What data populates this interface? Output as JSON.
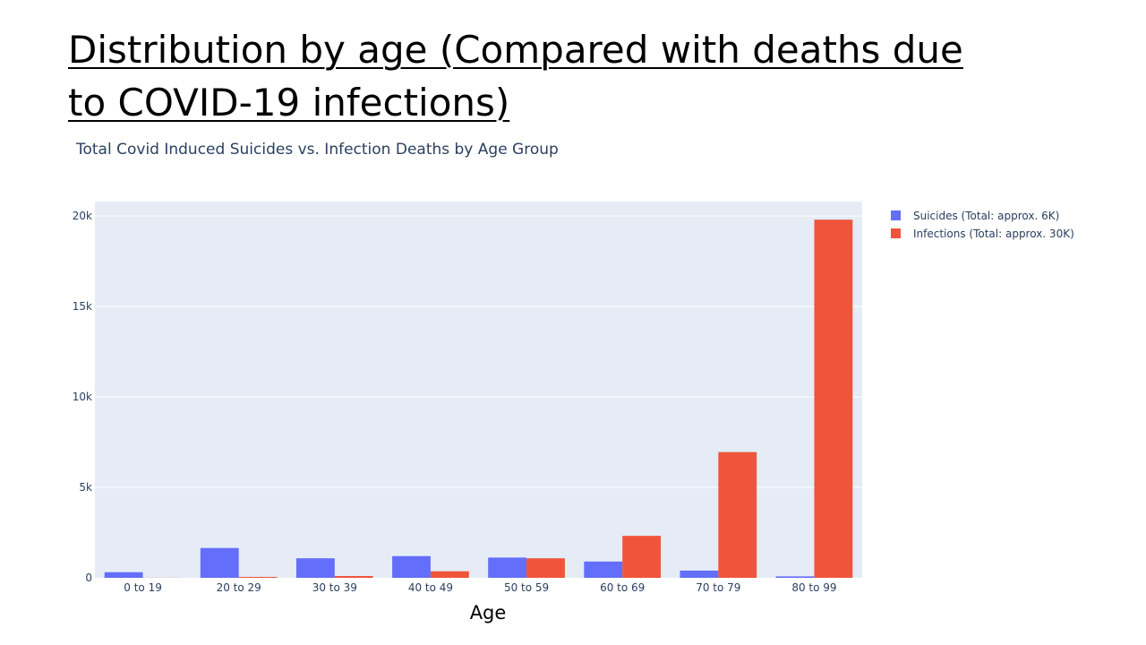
{
  "slide": {
    "title": "Distribution by age (Compared with deaths due to COVID-19 infections)"
  },
  "colors": {
    "plot_background": "#e5ecf6",
    "gridline": "#ffffff",
    "suicides": "#636efa",
    "infections": "#ef553b",
    "tick_text": "#2a3f5f"
  },
  "chart_data": {
    "type": "bar",
    "title": "Total Covid Induced Suicides vs. Infection Deaths by Age Group",
    "xlabel": "Age",
    "ylabel": "",
    "categories": [
      "0 to 19",
      "20 to 29",
      "30 to 39",
      "40 to 49",
      "50 to 59",
      "60 to 69",
      "70 to 79",
      "80 to 99"
    ],
    "series": [
      {
        "name": "Suicides (Total: approx. 6K)",
        "values": [
          310,
          1650,
          1080,
          1200,
          1120,
          900,
          400,
          80
        ]
      },
      {
        "name": "Infections (Total: approx. 30K)",
        "values": [
          5,
          50,
          100,
          360,
          1080,
          2320,
          6950,
          19800
        ]
      }
    ],
    "ylim": [
      0,
      20800
    ],
    "yticks": [
      0,
      5000,
      10000,
      15000,
      20000
    ],
    "ytick_labels": [
      "0",
      "5k",
      "10k",
      "15k",
      "20k"
    ],
    "grid": true,
    "legend_position": "top-right"
  }
}
